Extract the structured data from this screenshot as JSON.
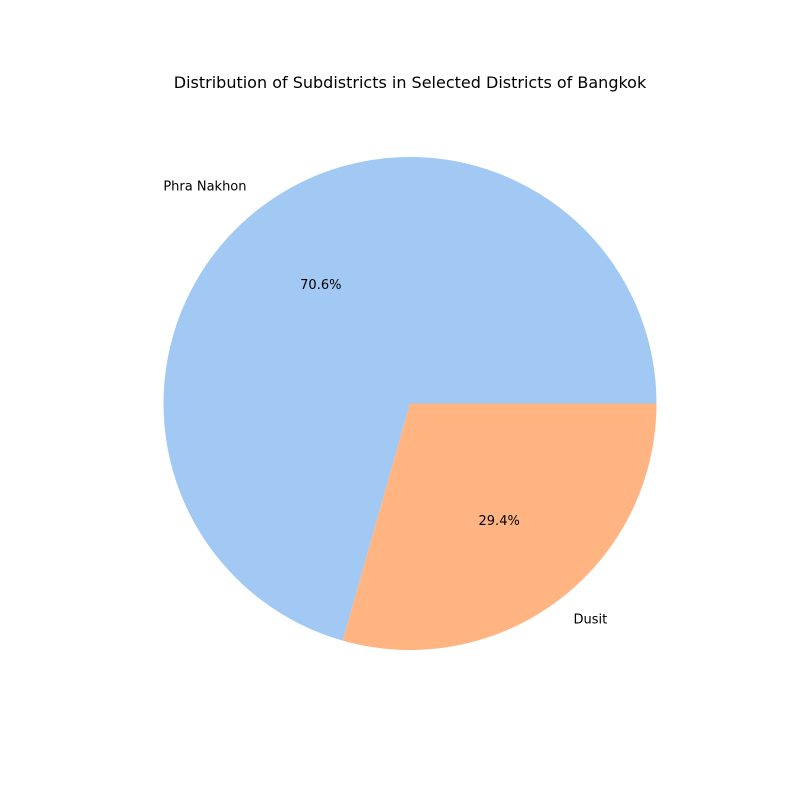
{
  "chart_data": {
    "type": "pie",
    "title": "Distribution of Subdistricts in Selected Districts of Bangkok",
    "slices": [
      {
        "label": "Phra Nakhon",
        "value": 70.6,
        "pct_label": "70.6%",
        "color": "#a1c9f4"
      },
      {
        "label": "Dusit",
        "value": 29.4,
        "pct_label": "29.4%",
        "color": "#ffb482"
      }
    ],
    "start_angle_deg": 0,
    "direction": "counterclockwise",
    "legend": "none"
  }
}
